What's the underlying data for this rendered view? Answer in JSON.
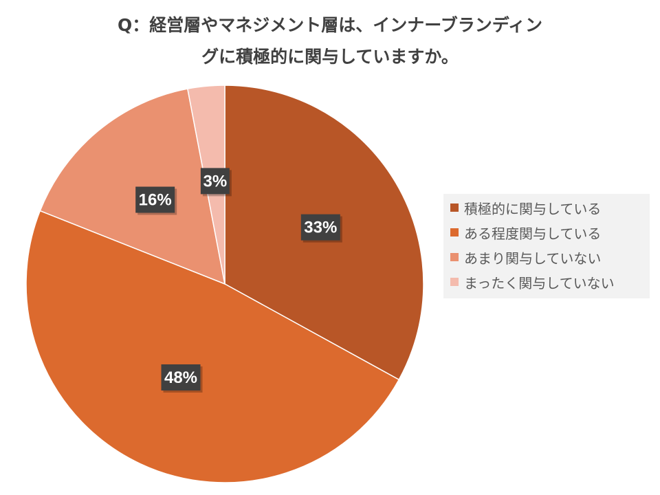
{
  "chart_data": {
    "type": "pie",
    "title_lines": [
      "Q：経営層やマネジメント層は、インナーブランディン",
      "グに積極的に関与していますか。"
    ],
    "categories": [
      "積極的に関与している",
      "ある程度関与している",
      "あまり関与していない",
      "まったく関与していない"
    ],
    "values": [
      33,
      48,
      16,
      3
    ],
    "value_labels": [
      "33%",
      "48%",
      "16%",
      "3%"
    ],
    "colors": [
      "#b85627",
      "#dc6a2e",
      "#ea9170",
      "#f4bbad"
    ],
    "label_background": "#404040",
    "legend_placement": "right",
    "start_angle_deg": 0,
    "direction": "clockwise"
  }
}
